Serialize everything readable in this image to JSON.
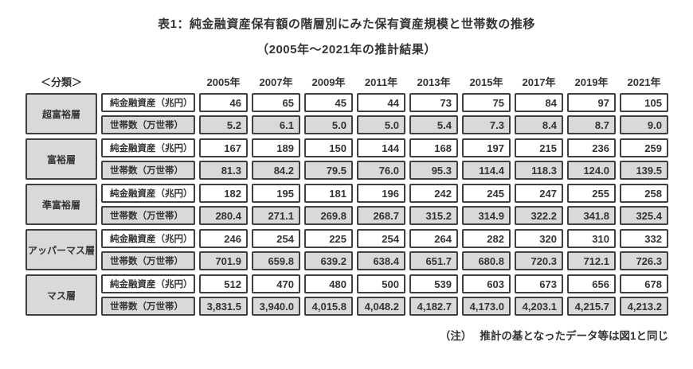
{
  "colors": {
    "cell_fill_gray": "#d9d9d9",
    "cell_border": "#404040",
    "text": "#333333"
  },
  "title": "表1：純金融資産保有額の階層別にみた保有資産規模と世帯数の推移",
  "subtitle": "（2005年～2021年の推計結果）",
  "note": {
    "label": "（注）",
    "text": "推計の基となったデータ等は図1と同じ"
  },
  "table": {
    "category_header": "＜分類＞",
    "years": [
      "2005年",
      "2007年",
      "2009年",
      "2011年",
      "2013年",
      "2015年",
      "2017年",
      "2019年",
      "2021年"
    ],
    "row_labels": {
      "assets": "純金融資産（兆円）",
      "households": "世帯数（万世帯）"
    },
    "groups": [
      {
        "category": "超富裕層",
        "assets": [
          "46",
          "65",
          "45",
          "44",
          "73",
          "75",
          "84",
          "97",
          "105"
        ],
        "households": [
          "5.2",
          "6.1",
          "5.0",
          "5.0",
          "5.4",
          "7.3",
          "8.4",
          "8.7",
          "9.0"
        ]
      },
      {
        "category": "富裕層",
        "assets": [
          "167",
          "189",
          "150",
          "144",
          "168",
          "197",
          "215",
          "236",
          "259"
        ],
        "households": [
          "81.3",
          "84.2",
          "79.5",
          "76.0",
          "95.3",
          "114.4",
          "118.3",
          "124.0",
          "139.5"
        ]
      },
      {
        "category": "準富裕層",
        "assets": [
          "182",
          "195",
          "181",
          "196",
          "242",
          "245",
          "247",
          "255",
          "258"
        ],
        "households": [
          "280.4",
          "271.1",
          "269.8",
          "268.7",
          "315.2",
          "314.9",
          "322.2",
          "341.8",
          "325.4"
        ]
      },
      {
        "category": "アッパーマス層",
        "assets": [
          "246",
          "254",
          "225",
          "254",
          "264",
          "282",
          "320",
          "310",
          "332"
        ],
        "households": [
          "701.9",
          "659.8",
          "639.2",
          "638.4",
          "651.7",
          "680.8",
          "720.3",
          "712.1",
          "726.3"
        ]
      },
      {
        "category": "マス層",
        "assets": [
          "512",
          "470",
          "480",
          "500",
          "539",
          "603",
          "673",
          "656",
          "678"
        ],
        "households": [
          "3,831.5",
          "3,940.0",
          "4,015.8",
          "4,048.2",
          "4,182.7",
          "4,173.0",
          "4,203.1",
          "4,215.7",
          "4,213.2"
        ]
      }
    ]
  }
}
